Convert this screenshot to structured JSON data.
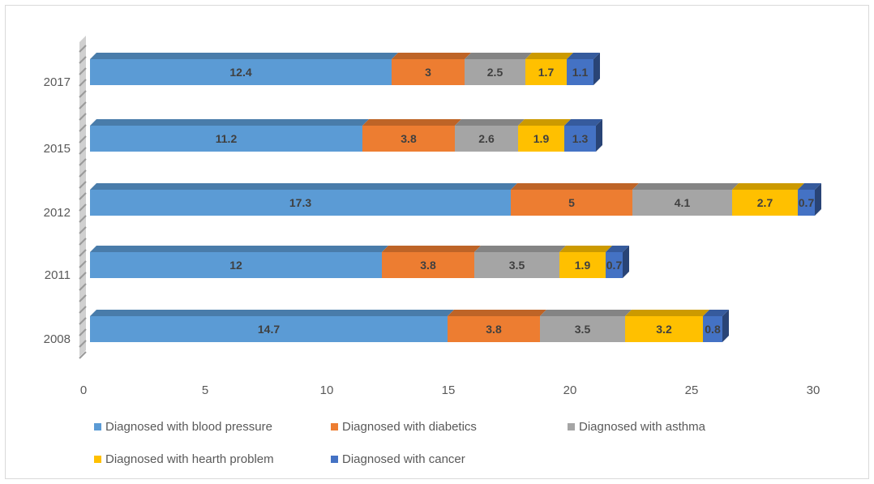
{
  "chart_data": {
    "type": "bar",
    "orientation": "horizontal",
    "stacked": true,
    "categories": [
      "2017",
      "2015",
      "2012",
      "2011",
      "2008"
    ],
    "series": [
      {
        "name": "Diagnosed with blood pressure",
        "color": "#5b9bd5",
        "values": [
          12.4,
          11.2,
          17.3,
          12,
          14.7
        ]
      },
      {
        "name": "Diagnosed with diabetics",
        "color": "#ed7d31",
        "values": [
          3,
          3.8,
          5,
          3.8,
          3.8
        ]
      },
      {
        "name": "Diagnosed with asthma",
        "color": "#a5a5a5",
        "values": [
          2.5,
          2.6,
          4.1,
          3.5,
          3.5
        ]
      },
      {
        "name": "Diagnosed with hearth problem",
        "color": "#ffc000",
        "values": [
          1.7,
          1.9,
          2.7,
          1.9,
          3.2
        ]
      },
      {
        "name": "Diagnosed with cancer",
        "color": "#4472c4",
        "values": [
          1.1,
          1.3,
          0.7,
          0.7,
          0.8
        ]
      }
    ],
    "xlim": [
      0,
      30
    ],
    "xticks": [
      "0",
      "5",
      "10",
      "15",
      "20",
      "25",
      "30"
    ],
    "grid": false,
    "style": "3d",
    "legend_position": "bottom",
    "title": "",
    "xlabel": "",
    "ylabel": ""
  }
}
